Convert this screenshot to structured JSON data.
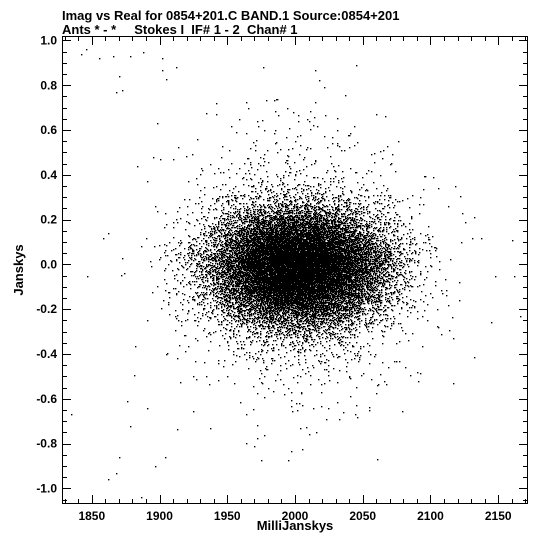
{
  "chart_data": {
    "type": "scatter",
    "title_line1": "Imag vs Real for 0854+201.C BAND.1   Source:0854+201",
    "title_line2": "Ants * - *     Stokes I  IF# 1 - 2  Chan# 1",
    "xlabel": "MilliJanskys",
    "ylabel": "Janskys",
    "xlim": [
      1828,
      2172
    ],
    "ylim": [
      -1.07,
      1.02
    ],
    "x_ticks": [
      1850,
      1900,
      1950,
      2000,
      2050,
      2100,
      2150
    ],
    "x_tick_labels": [
      "1850",
      "1900",
      "1950",
      "2000",
      "2050",
      "2100",
      "2150"
    ],
    "y_ticks": [
      1.0,
      0.8,
      0.6,
      0.4,
      0.2,
      0.0,
      -0.2,
      -0.4,
      -0.6,
      -0.8,
      -1.0
    ],
    "y_tick_labels": [
      "1.0",
      "0.8",
      "0.6",
      "0.4",
      "0.2",
      "0.0",
      "-0.2",
      "-0.4",
      "-0.6",
      "-0.8",
      "-1.0"
    ],
    "grid": false,
    "point_color": "#000000",
    "cloud": {
      "center_x_mjy": 2002,
      "center_y_jy": -0.01,
      "sigma_x_mjy": 30,
      "sigma_y_jy": 0.12,
      "n_core_points": 26000,
      "n_halo_points": 2500
    },
    "points": [
      {
        "x": 1846,
        "y": 0.96
      },
      {
        "x": 1842,
        "y": 0.94
      },
      {
        "x": 1855,
        "y": 0.92
      },
      {
        "x": 1866,
        "y": 0.93
      },
      {
        "x": 1878,
        "y": 0.93
      },
      {
        "x": 1888,
        "y": 0.95
      },
      {
        "x": 1902,
        "y": 0.92
      },
      {
        "x": 1912,
        "y": 0.88
      },
      {
        "x": 1870,
        "y": 0.84
      },
      {
        "x": 1872,
        "y": 0.78
      },
      {
        "x": 1868,
        "y": 0.77
      },
      {
        "x": 1902,
        "y": 0.87
      },
      {
        "x": 1905,
        "y": 0.83
      },
      {
        "x": 1898,
        "y": 0.63
      },
      {
        "x": 1895,
        "y": 0.48
      },
      {
        "x": 1883,
        "y": 0.44
      },
      {
        "x": 1910,
        "y": 0.47
      },
      {
        "x": 1897,
        "y": 0.26
      },
      {
        "x": 1872,
        "y": 0.03
      },
      {
        "x": 1835,
        "y": -0.67
      },
      {
        "x": 1870,
        "y": -0.86
      },
      {
        "x": 1868,
        "y": -0.93
      },
      {
        "x": 1862,
        "y": -0.96
      },
      {
        "x": 1878,
        "y": -0.72
      },
      {
        "x": 1876,
        "y": -0.61
      },
      {
        "x": 1891,
        "y": -0.64
      },
      {
        "x": 1886,
        "y": -1.04
      },
      {
        "x": 1897,
        "y": -0.9
      },
      {
        "x": 1904,
        "y": -0.86
      },
      {
        "x": 2148,
        "y": -0.05
      },
      {
        "x": 2160,
        "y": 0.11
      },
      {
        "x": 2162,
        "y": -0.05
      },
      {
        "x": 2166,
        "y": -0.23
      },
      {
        "x": 2137,
        "y": 0.12
      },
      {
        "x": 2123,
        "y": 0.23
      },
      {
        "x": 2117,
        "y": -0.53
      }
    ]
  }
}
